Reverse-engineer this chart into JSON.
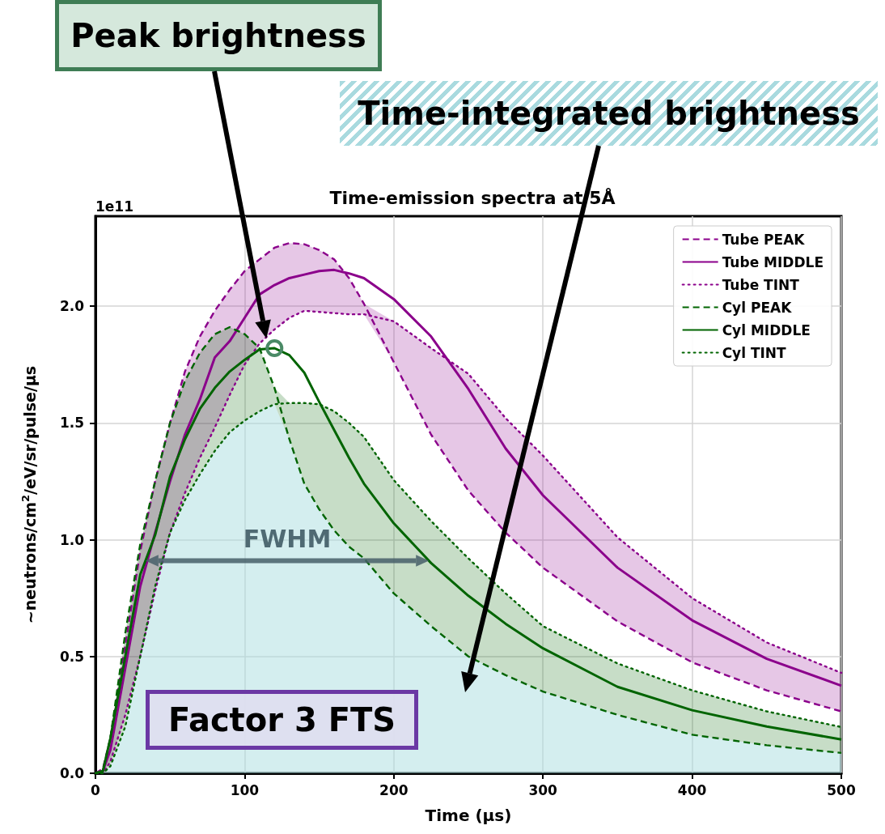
{
  "chart_data": {
    "type": "line",
    "title": "Time-emission spectra at 5Å",
    "xlabel": "Time (µs)",
    "ylabel": "~neutrons/cm$^{2}$/eV/sr/pulse/µs",
    "x": [
      0,
      5,
      10,
      20,
      30,
      40,
      50,
      60,
      70,
      80,
      90,
      100,
      110,
      120,
      130,
      140,
      150,
      160,
      170,
      180,
      200,
      225,
      250,
      275,
      300,
      350,
      400,
      450,
      500
    ],
    "series": [
      {
        "type": "area",
        "color": "#a8dcdf",
        "values": [
          0,
          0,
          0.03,
          0.2,
          0.5,
          0.8,
          1.03,
          1.17,
          1.28,
          1.38,
          1.46,
          1.51,
          1.55,
          1.58,
          1.43,
          1.24,
          1.13,
          1.04,
          0.97,
          0.92,
          0.77,
          0.63,
          0.5,
          0.42,
          0.35,
          0.25,
          0.165,
          0.12,
          0.087
        ]
      },
      {
        "name": "Tube PEAK",
        "color": "#8b008b",
        "line_style": "dashed",
        "values": [
          0,
          0.02,
          0.15,
          0.55,
          0.95,
          1.25,
          1.5,
          1.72,
          1.87,
          1.98,
          2.07,
          2.15,
          2.2,
          2.25,
          2.27,
          2.265,
          2.24,
          2.2,
          2.12,
          2.01,
          1.76,
          1.45,
          1.21,
          1.03,
          0.88,
          0.65,
          0.475,
          0.355,
          0.265
        ]
      },
      {
        "name": "Tube MIDDLE",
        "color": "#8b008b",
        "line_style": "solid",
        "values": [
          0,
          0.01,
          0.1,
          0.45,
          0.8,
          1.03,
          1.25,
          1.45,
          1.6,
          1.78,
          1.85,
          1.95,
          2.05,
          2.09,
          2.12,
          2.135,
          2.15,
          2.155,
          2.14,
          2.12,
          2.03,
          1.87,
          1.645,
          1.39,
          1.19,
          0.88,
          0.655,
          0.49,
          0.375
        ],
        "lower": [
          0,
          0,
          0.05,
          0.25,
          0.5,
          0.78,
          1.03,
          1.2,
          1.35,
          1.48,
          1.62,
          1.75,
          1.84,
          1.9,
          1.95,
          1.98,
          1.975,
          1.97,
          1.965,
          1.965,
          1.76,
          1.45,
          1.21,
          1.03,
          0.88,
          0.65,
          0.475,
          0.355,
          0.265
        ],
        "upper": [
          0,
          0.02,
          0.15,
          0.55,
          0.95,
          1.25,
          1.5,
          1.72,
          1.87,
          1.98,
          2.07,
          2.15,
          2.2,
          2.25,
          2.27,
          2.265,
          2.24,
          2.2,
          2.12,
          2.01,
          1.935,
          1.82,
          1.71,
          1.52,
          1.36,
          1.01,
          0.75,
          0.56,
          0.43
        ]
      },
      {
        "name": "Tube TINT",
        "color": "#8b008b",
        "line_style": "dotted",
        "values": [
          0,
          0,
          0.05,
          0.25,
          0.5,
          0.78,
          1.03,
          1.2,
          1.35,
          1.48,
          1.62,
          1.75,
          1.84,
          1.9,
          1.95,
          1.98,
          1.975,
          1.97,
          1.965,
          1.965,
          1.935,
          1.82,
          1.71,
          1.52,
          1.36,
          1.01,
          0.75,
          0.56,
          0.43
        ]
      },
      {
        "name": "Cyl PEAK",
        "color": "#006400",
        "line_style": "dashed",
        "values": [
          0,
          0.01,
          0.15,
          0.6,
          0.98,
          1.25,
          1.5,
          1.68,
          1.8,
          1.88,
          1.91,
          1.88,
          1.82,
          1.65,
          1.43,
          1.24,
          1.13,
          1.04,
          0.97,
          0.92,
          0.77,
          0.63,
          0.5,
          0.42,
          0.35,
          0.25,
          0.165,
          0.12,
          0.087
        ]
      },
      {
        "name": "Cyl MIDDLE",
        "color": "#006400",
        "line_style": "solid",
        "values": [
          0,
          0.01,
          0.15,
          0.5,
          0.85,
          1.02,
          1.27,
          1.43,
          1.56,
          1.65,
          1.72,
          1.77,
          1.815,
          1.82,
          1.79,
          1.715,
          1.59,
          1.47,
          1.35,
          1.24,
          1.07,
          0.9,
          0.76,
          0.64,
          0.535,
          0.37,
          0.27,
          0.2,
          0.145
        ],
        "lower": [
          0,
          0,
          0.03,
          0.2,
          0.5,
          0.8,
          1.03,
          1.17,
          1.28,
          1.38,
          1.46,
          1.51,
          1.55,
          1.58,
          1.43,
          1.24,
          1.13,
          1.04,
          0.97,
          0.92,
          0.77,
          0.63,
          0.5,
          0.42,
          0.35,
          0.25,
          0.165,
          0.12,
          0.087
        ],
        "upper": [
          0,
          0.01,
          0.15,
          0.6,
          0.98,
          1.25,
          1.5,
          1.68,
          1.8,
          1.88,
          1.91,
          1.88,
          1.82,
          1.65,
          1.585,
          1.585,
          1.58,
          1.55,
          1.5,
          1.44,
          1.255,
          1.08,
          0.92,
          0.77,
          0.63,
          0.47,
          0.355,
          0.265,
          0.198
        ]
      },
      {
        "name": "Cyl TINT",
        "color": "#006400",
        "line_style": "dotted",
        "values": [
          0,
          0,
          0.03,
          0.2,
          0.5,
          0.8,
          1.03,
          1.17,
          1.28,
          1.38,
          1.46,
          1.51,
          1.55,
          1.58,
          1.585,
          1.585,
          1.58,
          1.55,
          1.5,
          1.44,
          1.255,
          1.08,
          0.92,
          0.77,
          0.63,
          0.47,
          0.355,
          0.265,
          0.198
        ]
      }
    ],
    "xlim": [
      0,
      500
    ],
    "xticks": [
      0,
      100,
      200,
      300,
      400,
      500
    ],
    "ylim": [
      0,
      2.385
    ],
    "yticks": [
      {
        "value": 0,
        "label": "0.0"
      },
      0.5,
      {
        "value": 1,
        "label": "1.0"
      },
      1.5,
      {
        "value": 2,
        "label": "2.0"
      }
    ],
    "grid": true,
    "legend": "top right",
    "marker": "none",
    "annotations": [
      "Peak brightness",
      "Time-integrated brightness",
      "FWHM",
      "Factor 3 FTS",
      "1e11"
    ]
  }
}
